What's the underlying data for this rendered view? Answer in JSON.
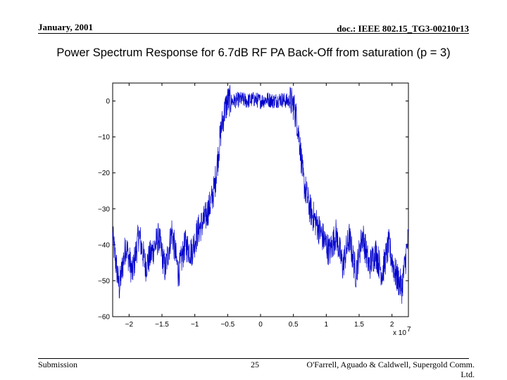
{
  "header": {
    "date": "January, 2001",
    "doc_id": "doc.: IEEE 802.15_TG3-00210r13"
  },
  "slide": {
    "title": "Power Spectrum Response for 6.7dB RF PA Back-Off from saturation (p = 3)"
  },
  "footer": {
    "label": "Submission",
    "page": "25",
    "authors": "O'Farrell, Aguado & Caldwell, Supergold Comm. Ltd."
  },
  "chart_data": {
    "type": "line",
    "title": "",
    "xlabel": "",
    "ylabel": "",
    "x_multiplier_label": "x 10",
    "x_multiplier_exp": "7",
    "xlim": [
      -2.25,
      2.25
    ],
    "ylim": [
      -60,
      5
    ],
    "x_ticks": [
      -2,
      -1.5,
      -1,
      -0.5,
      0,
      0.5,
      1,
      1.5,
      2
    ],
    "x_tick_labels": [
      "-2",
      "-1.5",
      "-1",
      "-0.5",
      "0",
      "0.5",
      "1",
      "1.5",
      "2"
    ],
    "y_ticks": [
      0,
      -10,
      -20,
      -30,
      -40,
      -50,
      -60
    ],
    "y_tick_labels": [
      "0",
      "-10",
      "-20",
      "-30",
      "-40",
      "-50",
      "-60"
    ],
    "grid": false,
    "line_color": "#0000cc",
    "series": [
      {
        "x": [
          -2.25,
          -2.15,
          -2.05,
          -1.95,
          -1.85,
          -1.75,
          -1.65,
          -1.55,
          -1.45,
          -1.35,
          -1.25,
          -1.15,
          -1.05,
          -0.95,
          -0.85,
          -0.75,
          -0.7,
          -0.65,
          -0.6,
          -0.55,
          -0.5,
          -0.45,
          -0.4,
          -0.3,
          -0.2,
          -0.1,
          0,
          0.1,
          0.2,
          0.3,
          0.4,
          0.45,
          0.5,
          0.55,
          0.6,
          0.65,
          0.7,
          0.75,
          0.85,
          0.95,
          1.05,
          1.15,
          1.25,
          1.35,
          1.45,
          1.55,
          1.65,
          1.75,
          1.85,
          1.95,
          2.05,
          2.15,
          2.25
        ],
        "values": [
          -38,
          -52,
          -40,
          -48,
          -37,
          -46,
          -42,
          -38,
          -47,
          -36,
          -48,
          -40,
          -42,
          -36,
          -33,
          -28,
          -24,
          -16,
          -8,
          -3,
          0,
          0,
          0,
          0.5,
          0,
          0.5,
          0,
          0.5,
          0,
          0.5,
          0,
          0,
          -1,
          -5,
          -12,
          -22,
          -26,
          -30,
          -34,
          -38,
          -42,
          -37,
          -46,
          -38,
          -48,
          -37,
          -46,
          -42,
          -48,
          -40,
          -48,
          -52,
          -38
        ]
      }
    ]
  }
}
